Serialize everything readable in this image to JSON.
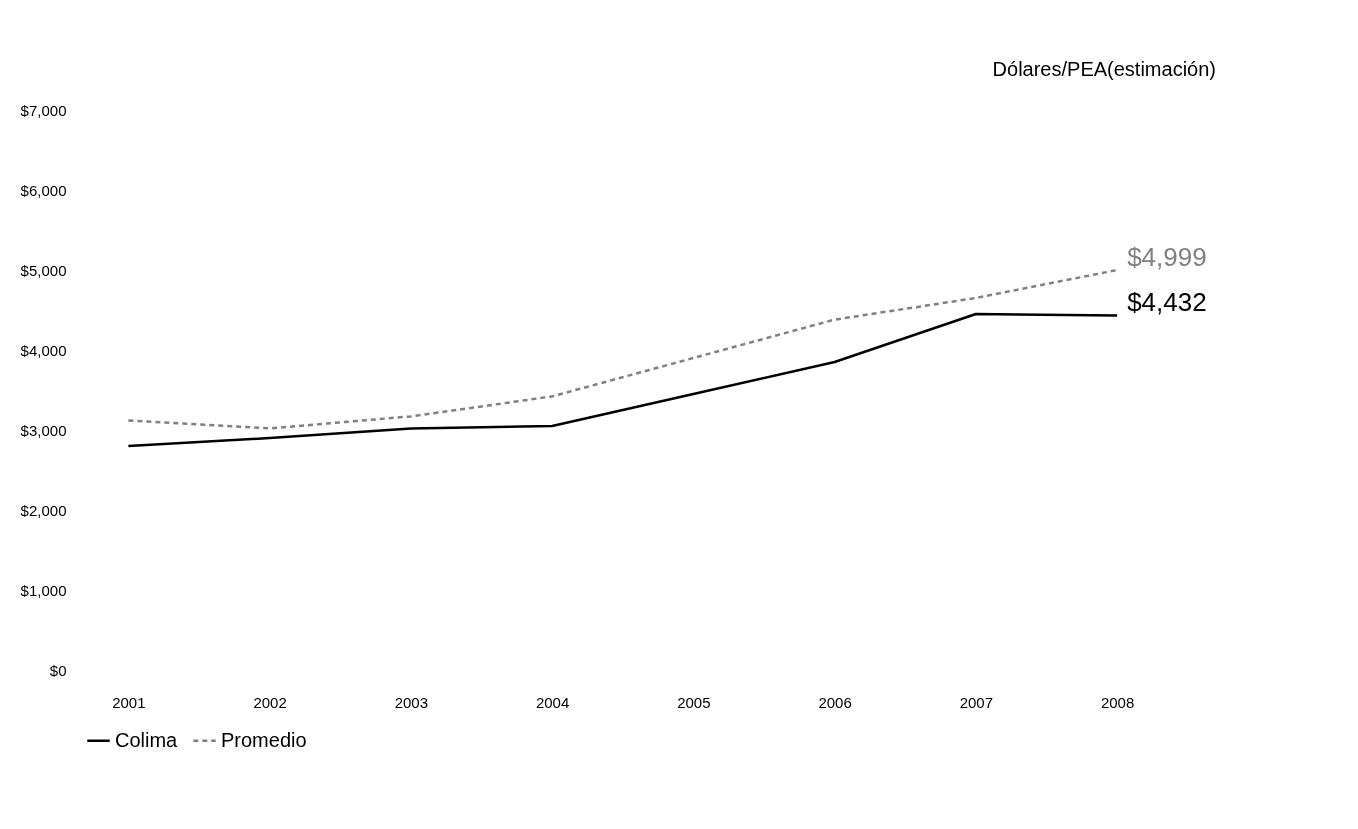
{
  "chart_data": {
    "type": "line",
    "ylabel": "Dólares/PEA(estimación)",
    "categories": [
      "2001",
      "2002",
      "2003",
      "2004",
      "2005",
      "2006",
      "2007",
      "2008"
    ],
    "series": [
      {
        "name": "Colima",
        "color": "#000000",
        "line_style": "solid",
        "values": [
          2800,
          2900,
          3020,
          3050,
          3450,
          3850,
          4450,
          4432
        ],
        "value_labels": [
          null,
          null,
          null,
          null,
          null,
          null,
          null,
          "$4,432"
        ]
      },
      {
        "name": "Promedio",
        "color": "#808080",
        "line_style": "dashed",
        "values": [
          3120,
          3020,
          3170,
          3420,
          3900,
          4380,
          4650,
          4999
        ],
        "value_labels": [
          null,
          null,
          null,
          null,
          null,
          null,
          null,
          "$4,999"
        ]
      }
    ],
    "ylim": [
      0,
      7000
    ],
    "yticks": [
      {
        "value": 0,
        "label": "$0"
      },
      {
        "value": 1000,
        "label": "$1,000"
      },
      {
        "value": 2000,
        "label": "$2,000"
      },
      {
        "value": 3000,
        "label": "$3,000"
      },
      {
        "value": 4000,
        "label": "$4,000"
      },
      {
        "value": 5000,
        "label": "$5,000"
      },
      {
        "value": 6000,
        "label": "$6,000"
      },
      {
        "value": 7000,
        "label": "$7,000"
      }
    ],
    "grid": false,
    "legend": "bottom",
    "marker": "none"
  }
}
